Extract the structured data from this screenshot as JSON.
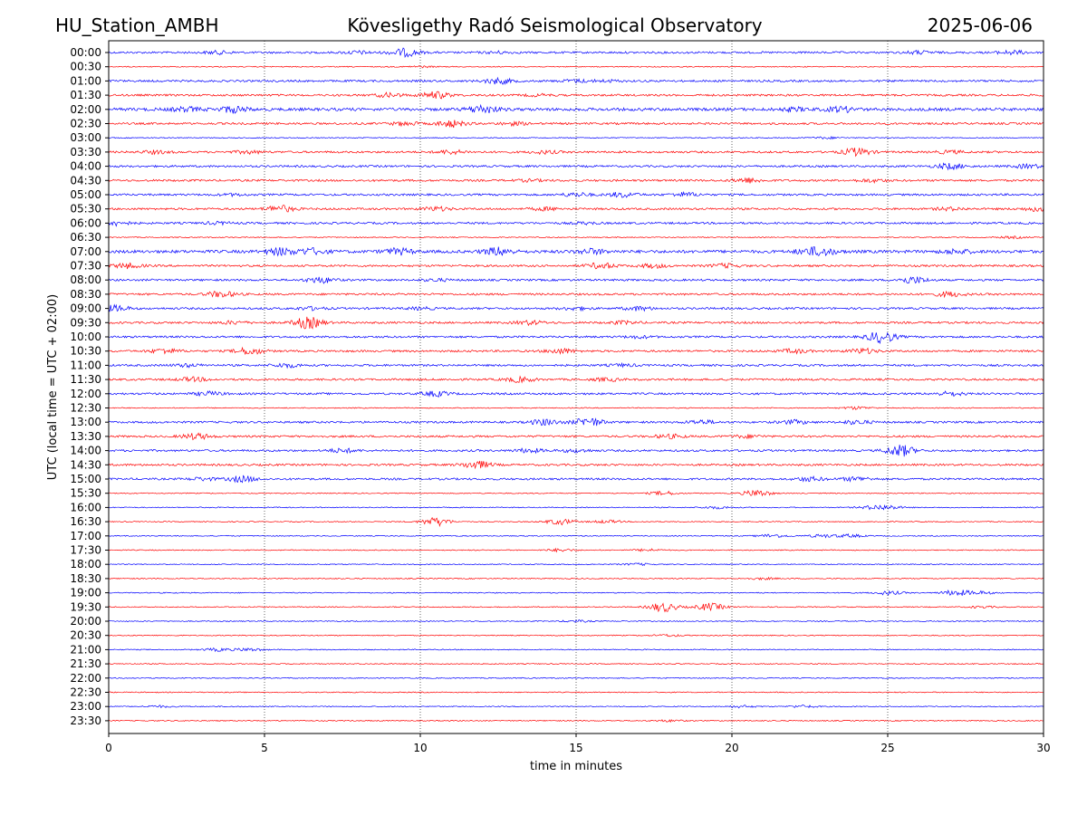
{
  "header": {
    "station": "HU_Station_AMBH",
    "observatory": "Kövesligethy Radó Seismological Observatory",
    "date": "2025-06-06"
  },
  "chart_data": {
    "type": "line",
    "title": "Kövesligethy Radó Seismological Observatory",
    "xlabel": "time in minutes",
    "ylabel": "UTC (local time = UTC + 02:00)",
    "xlim": [
      0,
      30
    ],
    "x_ticks": [
      0,
      5,
      10,
      15,
      20,
      25,
      30
    ],
    "grid": "vertical dotted at 5-minute intervals",
    "colors": {
      "even": "#0000ff",
      "odd": "#ff0000"
    },
    "rows": [
      "00:00",
      "00:30",
      "01:00",
      "01:30",
      "02:00",
      "02:30",
      "03:00",
      "03:30",
      "04:00",
      "04:30",
      "05:00",
      "05:30",
      "06:00",
      "06:30",
      "07:00",
      "07:30",
      "08:00",
      "08:30",
      "09:00",
      "09:30",
      "10:00",
      "10:30",
      "11:00",
      "11:30",
      "12:00",
      "12:30",
      "13:00",
      "13:30",
      "14:00",
      "14:30",
      "15:00",
      "15:30",
      "16:00",
      "16:30",
      "17:00",
      "17:30",
      "18:00",
      "18:30",
      "19:00",
      "19:30",
      "20:00",
      "20:30",
      "21:00",
      "21:30",
      "22:00",
      "22:30",
      "23:00",
      "23:30"
    ],
    "noise_level": [
      2,
      1,
      2,
      2,
      3,
      2,
      1,
      2,
      2,
      2,
      2,
      2,
      2,
      1,
      3,
      2,
      2,
      2,
      2,
      2,
      2,
      2,
      2,
      2,
      2,
      1,
      2,
      2,
      2,
      2,
      2,
      1,
      1,
      1,
      1,
      1,
      1,
      1,
      1,
      1,
      1,
      1,
      1,
      1,
      1,
      1,
      1,
      1
    ],
    "events": [
      [
        [
          3.5,
          1.5
        ],
        [
          8,
          1.5
        ],
        [
          9.5,
          4
        ],
        [
          12.5,
          1
        ],
        [
          26,
          1.5
        ],
        [
          29,
          2
        ]
      ],
      [
        [
          10,
          0.8
        ]
      ],
      [
        [
          12.5,
          3
        ],
        [
          15,
          1.5
        ],
        [
          16,
          1
        ]
      ],
      [
        [
          9,
          2
        ],
        [
          10.5,
          3.5
        ],
        [
          13.8,
          1
        ]
      ],
      [
        [
          2.5,
          2
        ],
        [
          4,
          3
        ],
        [
          12,
          4
        ],
        [
          22,
          1.5
        ],
        [
          23.5,
          2.5
        ]
      ],
      [
        [
          9.5,
          1.8
        ],
        [
          11,
          3.5
        ],
        [
          13,
          1.5
        ]
      ],
      [
        [
          23,
          1
        ]
      ],
      [
        [
          1.5,
          1.5
        ],
        [
          4.5,
          1.5
        ],
        [
          11,
          2
        ],
        [
          14,
          1.5
        ],
        [
          24,
          4
        ],
        [
          27,
          1.5
        ]
      ],
      [
        [
          27,
          3
        ],
        [
          29.5,
          2
        ]
      ],
      [
        [
          13.5,
          1
        ],
        [
          20.5,
          2.5
        ],
        [
          24.5,
          1.5
        ]
      ],
      [
        [
          4,
          1
        ],
        [
          15,
          2
        ],
        [
          16.5,
          2.5
        ],
        [
          18.5,
          2
        ]
      ],
      [
        [
          5.5,
          3.5
        ],
        [
          10.5,
          2
        ],
        [
          14,
          1.5
        ],
        [
          27,
          1.5
        ],
        [
          29.8,
          2
        ]
      ],
      [
        [
          0.2,
          2.5
        ],
        [
          3.5,
          1.2
        ],
        [
          15.3,
          1
        ]
      ],
      [
        [
          29,
          1
        ]
      ],
      [
        [
          5.5,
          3.5
        ],
        [
          6.5,
          3
        ],
        [
          9.3,
          3
        ],
        [
          12.5,
          4
        ],
        [
          15.5,
          2.5
        ],
        [
          22.5,
          3
        ],
        [
          23,
          2.5
        ],
        [
          27.2,
          2
        ]
      ],
      [
        [
          0.6,
          2.5
        ],
        [
          15.8,
          3
        ],
        [
          17.5,
          2
        ],
        [
          19.8,
          2
        ]
      ],
      [
        [
          6.8,
          3
        ],
        [
          10.5,
          1.2
        ],
        [
          25.8,
          3.5
        ]
      ],
      [
        [
          3.6,
          3
        ],
        [
          27,
          2.5
        ]
      ],
      [
        [
          0.2,
          3
        ],
        [
          6.5,
          1.5
        ],
        [
          10,
          1.2
        ],
        [
          15,
          1.5
        ],
        [
          17,
          2
        ]
      ],
      [
        [
          4,
          1.5
        ],
        [
          6.4,
          6
        ],
        [
          13.5,
          2
        ],
        [
          16.5,
          1.5
        ]
      ],
      [
        [
          24.8,
          6
        ],
        [
          17,
          1.2
        ]
      ],
      [
        [
          1.8,
          2.5
        ],
        [
          4.5,
          3.5
        ],
        [
          14.5,
          2.5
        ],
        [
          22,
          2
        ],
        [
          24.2,
          2.5
        ]
      ],
      [
        [
          2.5,
          1.5
        ],
        [
          5.7,
          2
        ],
        [
          16.5,
          1.2
        ]
      ],
      [
        [
          2.7,
          2
        ],
        [
          13.2,
          2.5
        ],
        [
          16,
          1.5
        ]
      ],
      [
        [
          3.2,
          2
        ],
        [
          10.5,
          2.5
        ],
        [
          27,
          2
        ]
      ],
      [
        [
          24,
          1.5
        ]
      ],
      [
        [
          14,
          3
        ],
        [
          15.4,
          4.5
        ],
        [
          19,
          2
        ],
        [
          22,
          2
        ],
        [
          24,
          2
        ]
      ],
      [
        [
          2.8,
          3
        ],
        [
          18,
          2
        ],
        [
          20.5,
          1.5
        ]
      ],
      [
        [
          7.5,
          2
        ],
        [
          13.5,
          2
        ],
        [
          15,
          1.5
        ],
        [
          25.4,
          6
        ]
      ],
      [
        [
          11.8,
          4
        ]
      ],
      [
        [
          3,
          1.5
        ],
        [
          4.3,
          3
        ],
        [
          22.5,
          2
        ],
        [
          24,
          2
        ]
      ],
      [
        [
          17.8,
          2
        ],
        [
          20.8,
          3.5
        ]
      ],
      [
        [
          19.5,
          1.2
        ],
        [
          24.5,
          1.5
        ],
        [
          25,
          2
        ]
      ],
      [
        [
          10.5,
          4.5
        ],
        [
          14.5,
          3
        ],
        [
          16,
          1.5
        ]
      ],
      [
        [
          21.3,
          1.8
        ],
        [
          22.9,
          1.5
        ],
        [
          23.8,
          1.5
        ]
      ],
      [
        [
          14.5,
          1.5
        ],
        [
          17.3,
          1.2
        ]
      ],
      [
        [
          17,
          1
        ]
      ],
      [
        [
          21,
          1
        ]
      ],
      [
        [
          25,
          2
        ],
        [
          27.2,
          3
        ],
        [
          28,
          1.5
        ]
      ],
      [
        [
          17.8,
          5
        ],
        [
          19.3,
          4
        ],
        [
          28,
          1
        ]
      ],
      [
        [
          15,
          1
        ]
      ],
      [
        [
          18,
          1
        ]
      ],
      [
        [
          3.5,
          1.5
        ],
        [
          4.5,
          1.5
        ]
      ],
      [],
      [],
      [],
      [
        [
          1.6,
          1
        ],
        [
          20.3,
          1.2
        ],
        [
          22.3,
          1.2
        ]
      ],
      [
        [
          18,
          1
        ]
      ]
    ]
  }
}
